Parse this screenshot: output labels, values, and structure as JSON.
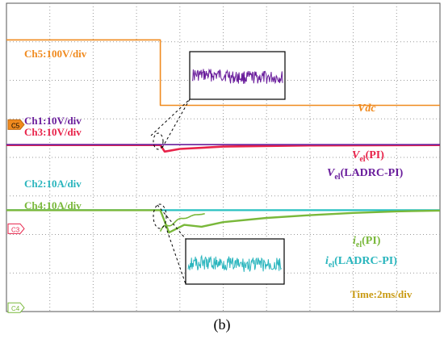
{
  "caption": "(b)",
  "chart_data": {
    "type": "line",
    "grid": true,
    "x_unit": "ms",
    "x_per_div": 2,
    "x_divisions": 10,
    "y_divisions": 8,
    "colors": {
      "background": "#ffffff",
      "grid": "#9a9a9a",
      "ch5": "#f08a1e",
      "ch1": "#6a1e9c",
      "ch3": "#e8234a",
      "ch2": "#29c1c1",
      "ch4": "#79b83a",
      "time": "#c99a12"
    },
    "channel_labels": {
      "ch5": "Ch5:100V/div",
      "ch1": "Ch1:10V/div",
      "ch3": "Ch3:10V/div",
      "ch2": "Ch2:10A/div",
      "ch4": "Ch4:10A/div"
    },
    "trace_labels": {
      "vdc": "Vdc",
      "vel_pi_main": "V",
      "vel_pi_sub": "el",
      "vel_pi_tail": "(PI)",
      "vel_ladrc_main": "V",
      "vel_ladrc_sub": "el",
      "vel_ladrc_tail": "(LADRC-PI)",
      "iel_pi_main": "i",
      "iel_pi_sub": "el",
      "iel_pi_tail": "(PI)",
      "iel_ladrc_main": "i",
      "iel_ladrc_sub": "el",
      "iel_ladrc_tail": "(LADRC-PI)"
    },
    "time_label": "Time:2ms/div",
    "markers": [
      "C5",
      "C3",
      "C4"
    ],
    "step_time_ms": 7.1,
    "series": [
      {
        "key": "ch5",
        "name": "Vdc",
        "x": [
          0,
          7.1,
          7.1,
          20
        ],
        "y_div": [
          7.05,
          7.05,
          5.35,
          5.35
        ]
      },
      {
        "key": "ch3",
        "name": "Vel(PI)",
        "x": [
          0,
          7.1,
          7.3,
          8.0,
          10,
          14,
          20
        ],
        "y_div": [
          4.32,
          4.32,
          4.15,
          4.22,
          4.28,
          4.31,
          4.32
        ]
      },
      {
        "key": "ch1",
        "name": "Vel(LADRC-PI)",
        "x": [
          0,
          20
        ],
        "y_div": [
          4.33,
          4.33
        ]
      },
      {
        "key": "ch2",
        "name": "iel(LADRC-PI)",
        "x": [
          0,
          20
        ],
        "y_div": [
          2.63,
          2.63
        ]
      },
      {
        "key": "ch4",
        "name": "iel(PI)",
        "x": [
          0,
          7.1,
          7.5,
          8.2,
          9,
          10,
          12,
          14,
          16,
          18,
          20
        ],
        "y_div": [
          2.63,
          2.63,
          2.05,
          2.25,
          2.2,
          2.32,
          2.43,
          2.5,
          2.56,
          2.6,
          2.62
        ]
      }
    ]
  }
}
